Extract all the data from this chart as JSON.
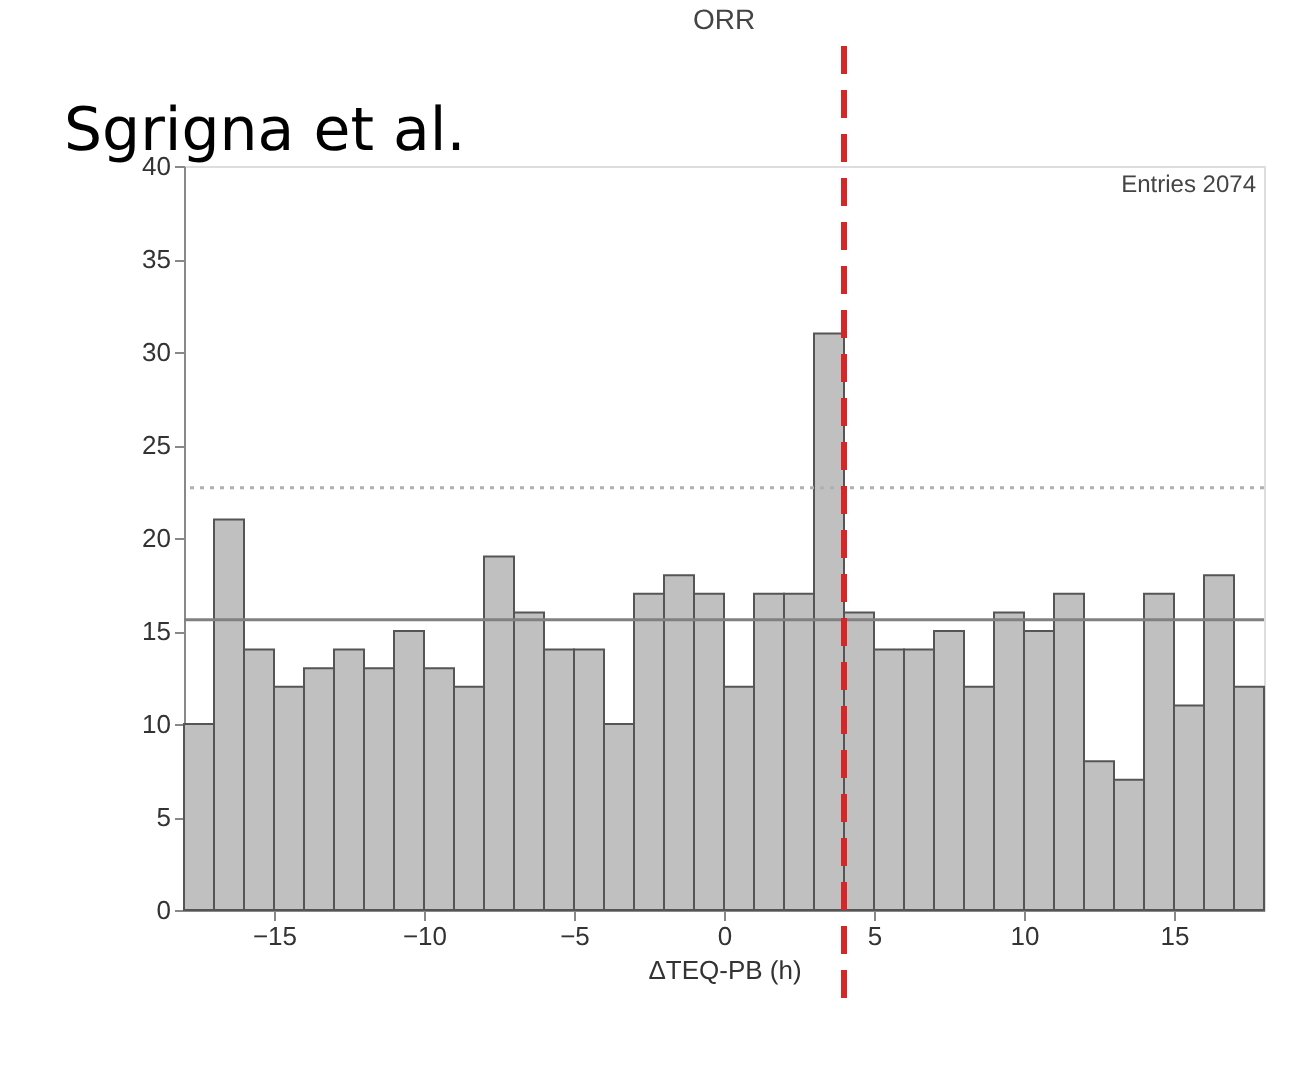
{
  "chart_data": {
    "type": "histogram",
    "title": "ORR",
    "xlabel": "ΔTEQ-PB (h)",
    "bins": [
      -18,
      -17,
      -16,
      -15,
      -14,
      -13,
      -12,
      -11,
      -10,
      -9,
      -8,
      -7,
      -6,
      -5,
      -4,
      -3,
      -2,
      -1,
      0,
      1,
      2,
      3,
      4,
      5,
      6,
      7,
      8,
      9,
      10,
      11,
      12,
      13,
      14,
      15,
      16,
      17,
      18
    ],
    "values": [
      10,
      21,
      14,
      12,
      13,
      14,
      13,
      15,
      13,
      12,
      19,
      16,
      14,
      14,
      10,
      17,
      18,
      17,
      12,
      17,
      17,
      31,
      16,
      14,
      14,
      15,
      12,
      16,
      15,
      17,
      8,
      7,
      17,
      11,
      18,
      12
    ],
    "color": "#c0c0c0",
    "xlim": [
      -18,
      18
    ],
    "xticks": [
      -15,
      -10,
      -5,
      0,
      5,
      10,
      15
    ],
    "ylim": [
      0,
      40
    ],
    "yticks": [
      0,
      5,
      10,
      15,
      20,
      25,
      30,
      35,
      40
    ],
    "ref_lines": [
      {
        "axis": "y",
        "value": 15.6,
        "color": "#808080",
        "line_style": "solid"
      },
      {
        "axis": "y",
        "value": 22.7,
        "color": "#b0b0b0",
        "line_style": "dotted"
      },
      {
        "axis": "x",
        "value": 4,
        "color": "#d62728",
        "line_style": "dashed"
      }
    ],
    "annotations": [
      "Sgrigna et al.",
      "Entries 2074"
    ],
    "grid": false
  }
}
